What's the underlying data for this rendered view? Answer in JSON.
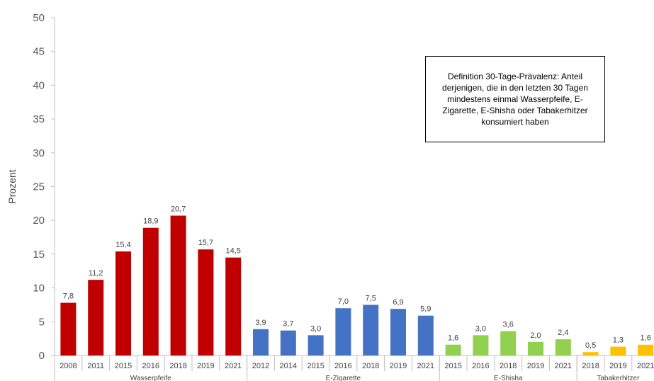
{
  "chart_data": {
    "type": "bar",
    "ylabel": "Prozent",
    "ylim": [
      0,
      50
    ],
    "yticks": [
      0,
      5,
      10,
      15,
      20,
      25,
      30,
      35,
      40,
      45,
      50
    ],
    "grid": false,
    "groups": [
      {
        "name": "Wasserpfeife",
        "color": "#c00000",
        "categories": [
          "2008",
          "2011",
          "2015",
          "2016",
          "2018",
          "2019",
          "2021"
        ],
        "values": [
          7.8,
          11.2,
          15.4,
          18.9,
          20.7,
          15.7,
          14.5
        ],
        "labels": [
          "7,8",
          "11,2",
          "15,4",
          "18,9",
          "20,7",
          "15,7",
          "14,5"
        ]
      },
      {
        "name": "E-Zigarette",
        "color": "#4472c4",
        "categories": [
          "2012",
          "2014",
          "2015",
          "2016",
          "2018",
          "2019",
          "2021"
        ],
        "values": [
          3.9,
          3.7,
          3.0,
          7.0,
          7.5,
          6.9,
          5.9
        ],
        "labels": [
          "3,9",
          "3,7",
          "3,0",
          "7,0",
          "7,5",
          "6,9",
          "5,9"
        ]
      },
      {
        "name": "E-Shisha",
        "color": "#92d050",
        "categories": [
          "2015",
          "2016",
          "2018",
          "2019",
          "2021"
        ],
        "values": [
          1.6,
          3.0,
          3.6,
          2.0,
          2.4
        ],
        "labels": [
          "1,6",
          "3,0",
          "3,6",
          "2,0",
          "2,4"
        ]
      },
      {
        "name": "Tabakerhitzer",
        "color": "#ffc000",
        "categories": [
          "2018",
          "2019",
          "2021"
        ],
        "values": [
          0.5,
          1.3,
          1.6
        ],
        "labels": [
          "0,5",
          "1,3",
          "1,6"
        ]
      }
    ],
    "annotation": "Definition 30-Tage-Prävalenz: Anteil derjenigen, die in den letzten 30 Tagen mindestens einmal Wasserpfeife, E-Zigarette, E-Shisha oder Tabakerhitzer konsumiert haben"
  }
}
